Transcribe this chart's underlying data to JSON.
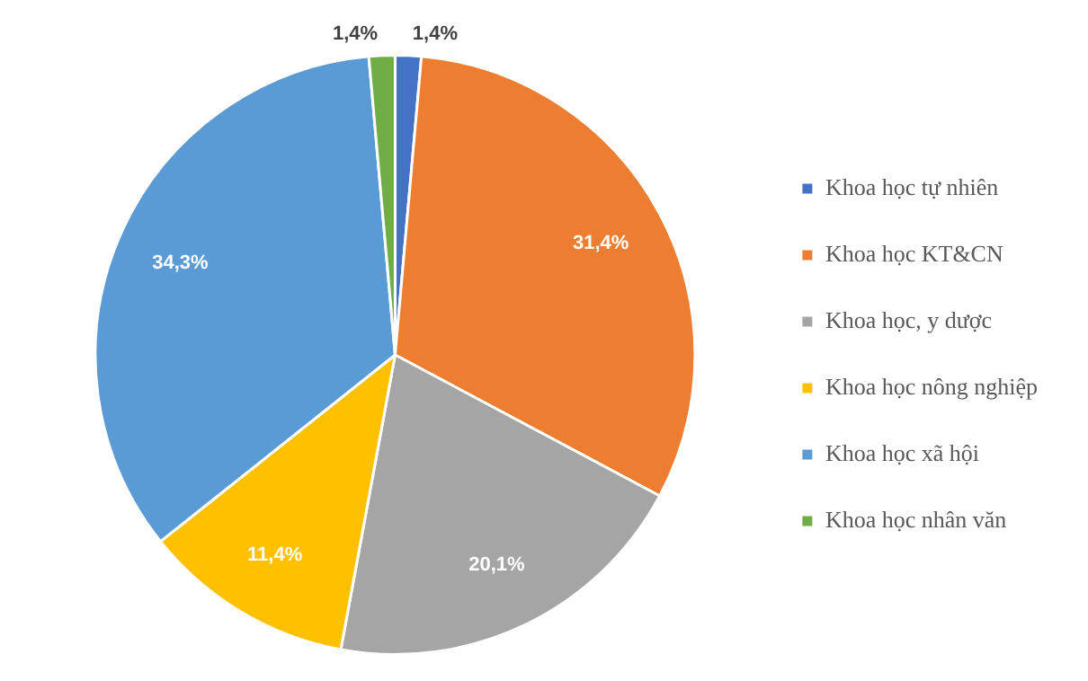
{
  "chart_data": {
    "type": "pie",
    "categories": [
      "Khoa học tự nhiên",
      "Khoa học KT&CN",
      "Khoa học, y dược",
      "Khoa học nông nghiệp",
      "Khoa học xã hội",
      "Khoa học nhân văn"
    ],
    "values": [
      1.4,
      31.4,
      20.1,
      11.4,
      34.3,
      1.4
    ],
    "colors": [
      "#4472c4",
      "#ed7d31",
      "#a5a5a5",
      "#ffc000",
      "#5b9bd5",
      "#70ad47"
    ],
    "value_labels": [
      "1,4%",
      "31,4%",
      "20,1%",
      "11,4%",
      "34,3%",
      "1,4%"
    ],
    "legend": "right"
  }
}
